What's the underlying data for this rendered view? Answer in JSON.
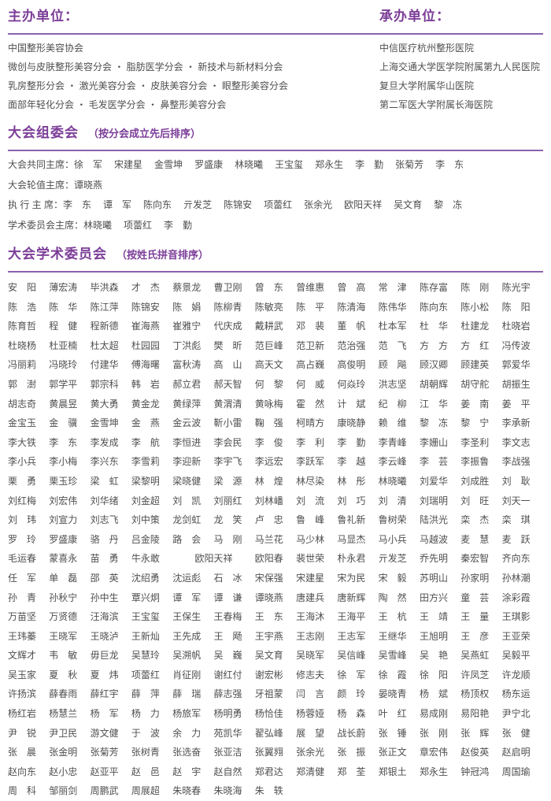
{
  "colors": {
    "accent": "#7c3e98",
    "rule": "#8a64ae",
    "text": "#4f4f4f"
  },
  "hosts": {
    "title": "主办单位：",
    "items": [
      "中国整形美容协会",
      "微创与皮肤整形美容分会 ・ 脂肪医学分会 ・ 新技术与新材料分会",
      "乳房整形分会 ・ 激光美容分会 ・ 皮肤美容分会 ・ 眼整形美容分会",
      "面部年轻化分会 ・ 毛发医学分会 ・ 鼻整形美容分会"
    ]
  },
  "organizers": {
    "title": "承办单位：",
    "items": [
      "中信医疗杭州整形医院",
      "上海交通大学医学院附属第九人民医院",
      "复旦大学附属华山医院",
      "第二军医大学附属长海医院"
    ]
  },
  "committee": {
    "title": "大会组委会",
    "subtitle": "（按分会成立先后排序）",
    "roles": [
      {
        "label": "大会共同主席：",
        "names": [
          "徐　军",
          "宋建星",
          "金雪坤",
          "罗盛康",
          "林晓曦",
          "王宝玺",
          "郑永生",
          "李　勤",
          "张菊芳",
          "李　东"
        ]
      },
      {
        "label": "大会轮值主席：",
        "names": [
          "谭晓燕"
        ]
      },
      {
        "label": "执 行 主 席：",
        "names": [
          "李　东",
          "谭　军",
          "陈向东",
          "亓发芝",
          "陈锦安",
          "项蕾红",
          "张余光",
          "欧阳天祥",
          "吴文育",
          "黎　冻"
        ]
      },
      {
        "label": "学术委员会主席：",
        "names": [
          "林晓曦",
          "项蕾红",
          "李　勤"
        ]
      }
    ]
  },
  "academic": {
    "title": "大会学术委员会",
    "subtitle": "（按姓氏拼音排序）",
    "rows": [
      [
        "安　阳",
        "薄宏涛",
        "毕洪森",
        "才　杰",
        "蔡景龙",
        "曹卫刚",
        "曾　东",
        "曾维惠",
        "曾　高",
        "常　津",
        "陈存富",
        "陈　刚",
        "陈光宇"
      ],
      [
        "陈　浩",
        "陈　华",
        "陈江萍",
        "陈锦安",
        "陈　娟",
        "陈柳青",
        "陈敏亮",
        "陈　平",
        "陈清海",
        "陈伟华",
        "陈向东",
        "陈小松",
        "陈　阳"
      ],
      [
        "陈育哲",
        "程　健",
        "程新德",
        "崔海燕",
        "崔雅宁",
        "代庆成",
        "戴耕武",
        "邓　裴",
        "董　帆",
        "杜本军",
        "杜　华",
        "杜建龙",
        "杜晓岩"
      ],
      [
        "杜晓杨",
        "杜亚楠",
        "杜太超",
        "杜园园",
        "丁洪彪",
        "樊　昕",
        "范巨峰",
        "范卫新",
        "范治强",
        "范　飞",
        "方　方",
        "方　红",
        "冯传波"
      ],
      [
        "冯丽莉",
        "冯晓玲",
        "付建华",
        "傅海曙",
        "富秋涛",
        "高　山",
        "高天文",
        "高占巍",
        "高俊明",
        "顾　飚",
        "顾汉卿",
        "顾建英",
        "郭爱华"
      ],
      [
        "郭　澍",
        "郭学平",
        "郭宗科",
        "韩　岩",
        "郝立君",
        "郝天智",
        "何　黎",
        "何　威",
        "何焱玲",
        "洪志坚",
        "胡朝辉",
        "胡守舵",
        "胡振生"
      ],
      [
        "胡志奇",
        "黄晨昱",
        "黄大勇",
        "黄金龙",
        "黄绿萍",
        "黄渭清",
        "黄咏梅",
        "霍　然",
        "计　斌",
        "纪　柳",
        "江　华",
        "姜　南",
        "姜　平"
      ],
      [
        "金宝玉",
        "金　骥",
        "金雪坤",
        "金　燕",
        "金云波",
        "靳小雷",
        "鞠　强",
        "柯晴方",
        "康晓静",
        "赖　维",
        "黎　冻",
        "黎　宁",
        "李承新"
      ],
      [
        "李大铁",
        "李　东",
        "李发成",
        "李　航",
        "李恒进",
        "李会民",
        "李　俊",
        "李　利",
        "李　勤",
        "李青峰",
        "李姗山",
        "李圣利",
        "李文志"
      ],
      [
        "李小兵",
        "李小梅",
        "李兴东",
        "李雪莉",
        "李迎新",
        "李宇飞",
        "李远宏",
        "李跃军",
        "李　越",
        "李云峰",
        "李　芸",
        "李振鲁",
        "李战强"
      ],
      [
        "栗　勇",
        "栗玉珍",
        "梁　虹",
        "梁黎明",
        "梁晓健",
        "梁　源",
        "林　煌",
        "林尽染",
        "林　彤",
        "林晓曦",
        "刘爱华",
        "刘成胜",
        "刘　耿"
      ],
      [
        "刘红梅",
        "刘宏伟",
        "刘华绪",
        "刘金超",
        "刘　凯",
        "刘丽红",
        "刘林嶓",
        "刘　流",
        "刘　巧",
        "刘　清",
        "刘瑞明",
        "刘　旺",
        "刘天一"
      ],
      [
        "刘　玮",
        "刘宣力",
        "刘志飞",
        "刘中策",
        "龙剑虹",
        "龙　笑",
        "卢　忠",
        "鲁　峰",
        "鲁礼新",
        "鲁树荣",
        "陆洪光",
        "栾　杰",
        "栾　琪"
      ],
      [
        "罗　玲",
        "罗盛康",
        "骆　丹",
        "吕金陵",
        "路　会",
        "马　刚",
        "马兰花",
        "马少林",
        "马显杰",
        "马小兵",
        "马越波",
        "麦　慧",
        "麦　跃"
      ],
      [
        "毛运春",
        "蒙喜永",
        "苗　勇",
        "牛永敢",
        {
          "t": "欧阳天祥",
          "w": 2
        },
        "欧阳春",
        "裴世荣",
        "朴永君",
        "亓发芝",
        "乔先明",
        "秦宏智",
        "齐向东"
      ],
      [
        "任　军",
        "单　磊",
        "邵　英",
        "沈绍勇",
        "沈运彪",
        "石　冰",
        "宋保强",
        "宋建星",
        "宋为民",
        "宋　毅",
        "苏明山",
        "孙家明",
        "孙林潮"
      ],
      [
        "孙　青",
        "孙秋宁",
        "孙中生",
        "覃兴炯",
        "谭　军",
        "谭　谦",
        "谭晓燕",
        "唐建兵",
        "唐新辉",
        "陶　然",
        "田方兴",
        "童　芸",
        "涂彩霞"
      ],
      [
        "万苗坚",
        "万贤德",
        "汪海滨",
        "王宝玺",
        "王保生",
        "王春梅",
        "王　东",
        "王海沐",
        "王海平",
        "王　杭",
        "王　靖",
        "王　量",
        "王琪影"
      ],
      [
        "王玮蓁",
        "王晓军",
        "王晓泸",
        "王新灿",
        "王先成",
        "王　飏",
        "王宇燕",
        "王志刚",
        "王志军",
        "王继华",
        "王旭明",
        "王　彦",
        "王亚荣"
      ],
      [
        "文辉才",
        "韦　敏",
        "毋巨龙",
        "吴慧玲",
        "吴溯帆",
        "吴　巍",
        "吴文育",
        "吴晓军",
        "吴信峰",
        "吴雪峰",
        "吴　艳",
        "吴燕虹",
        "吴毅平"
      ],
      [
        "吴玉家",
        "夏　秋",
        "夏　炜",
        "项蕾红",
        "肖征刚",
        "谢红付",
        "谢宏彬",
        "修志夫",
        "徐　军",
        "徐　霞",
        "徐　阳",
        "许凤芝",
        "许龙顺"
      ],
      [
        "许扬滨",
        "薛春雨",
        "薛红宇",
        "薛　萍",
        "薛　瑞",
        "薛志强",
        "牙祖蒙",
        "闫　言",
        "颜　玲",
        "晏晓青",
        "杨　斌",
        "杨顶权",
        "杨东运"
      ],
      [
        "杨红岩",
        "杨慧兰",
        "杨　军",
        "杨　力",
        "杨旅军",
        "杨明勇",
        "杨恰佳",
        "杨蓉娅",
        "杨　森",
        "叶　红",
        "易成刚",
        "易阳艳",
        "尹宁北"
      ],
      [
        "尹　锐",
        "尹卫民",
        "游文健",
        "于　波",
        "余　力",
        "苑凯华",
        "翟弘峰",
        "展　望",
        "战长蔚",
        "张　锤",
        "张　刚",
        "张　辉",
        "张　健"
      ],
      [
        "张　晨",
        "张金明",
        "张菊芳",
        "张树青",
        "张选奋",
        "张亚洁",
        "张翼翙",
        "张余光",
        "张　振",
        "张正文",
        "章宏伟",
        "赵俊英",
        "赵启明"
      ],
      [
        "赵向东",
        "赵小忠",
        "赵亚平",
        "赵　邑",
        "赵　宇",
        "赵自然",
        "郑君达",
        "郑清健",
        "郑　荃",
        "郑银土",
        "郑永生",
        "钟冠鸿",
        "周国瑜"
      ],
      [
        "周　科",
        "邹丽剑",
        "周鹏武",
        "周展超",
        "朱晓春",
        "朱晓海",
        "朱　轶"
      ]
    ]
  }
}
